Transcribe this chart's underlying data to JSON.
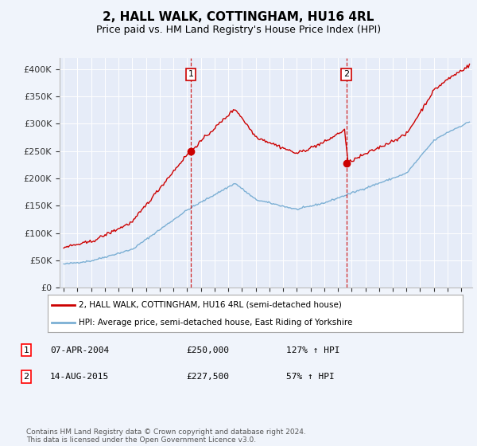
{
  "title": "2, HALL WALK, COTTINGHAM, HU16 4RL",
  "subtitle": "Price paid vs. HM Land Registry's House Price Index (HPI)",
  "title_fontsize": 11,
  "subtitle_fontsize": 9,
  "background_color": "#f0f4fb",
  "plot_bg_color": "#e6ecf8",
  "ylim": [
    0,
    420000
  ],
  "yticks": [
    0,
    50000,
    100000,
    150000,
    200000,
    250000,
    300000,
    350000,
    400000
  ],
  "ytick_labels": [
    "£0",
    "£50K",
    "£100K",
    "£150K",
    "£200K",
    "£250K",
    "£300K",
    "£350K",
    "£400K"
  ],
  "purchase1_date": 2004.27,
  "purchase1_price": 250000,
  "purchase2_date": 2015.62,
  "purchase2_price": 227500,
  "legend_line1": "2, HALL WALK, COTTINGHAM, HU16 4RL (semi-detached house)",
  "legend_line2": "HPI: Average price, semi-detached house, East Riding of Yorkshire",
  "annotation1_date": "07-APR-2004",
  "annotation1_price": "£250,000",
  "annotation1_hpi": "127% ↑ HPI",
  "annotation2_date": "14-AUG-2015",
  "annotation2_price": "£227,500",
  "annotation2_hpi": "57% ↑ HPI",
  "footer": "Contains HM Land Registry data © Crown copyright and database right 2024.\nThis data is licensed under the Open Government Licence v3.0.",
  "house_color": "#cc0000",
  "hpi_color": "#7bafd4",
  "vline_color": "#cc0000",
  "xmin": 1994.7,
  "xmax": 2024.8
}
